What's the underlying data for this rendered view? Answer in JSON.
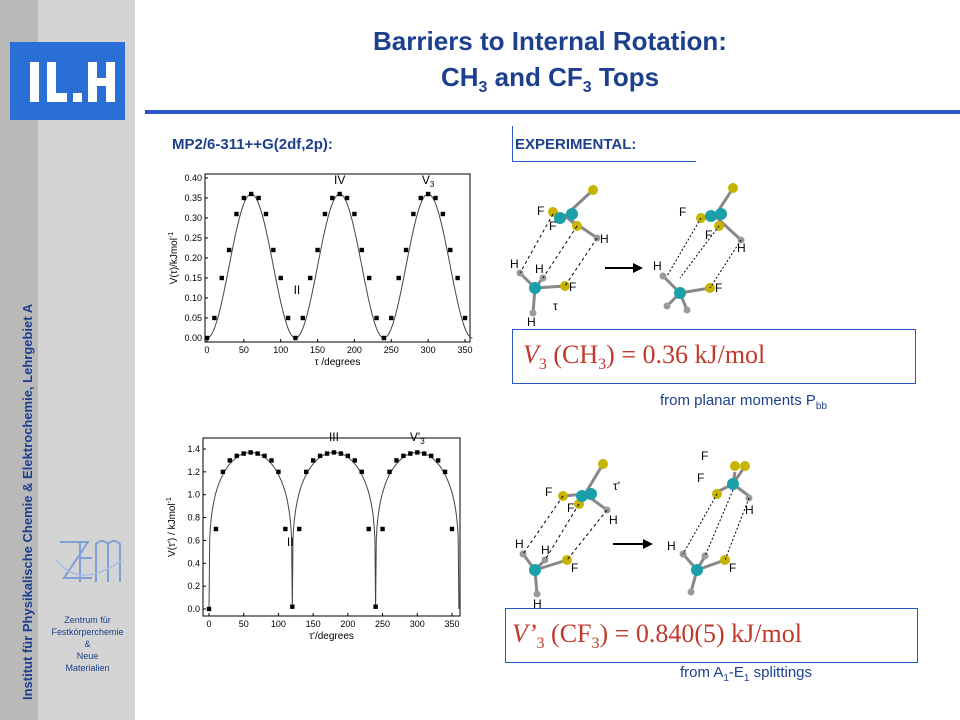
{
  "sidebar": {
    "logo_text": "I.II",
    "vertical_text": "Institut für Physikalische Chemie & Elektrochemie, Lehrgebiet A",
    "center_logo_text": "ZFM",
    "center_lines": [
      "Zentrum für",
      "Festkörperchemie",
      "&",
      "Neue",
      "Materialien"
    ]
  },
  "title": {
    "line1": "Barriers to Internal Rotation:",
    "line2_a": "CH",
    "line2_sub1": "3",
    "line2_b": " and CF",
    "line2_sub2": "3",
    "line2_c": " Tops"
  },
  "labels": {
    "calc": "MP2/6-311++G(2df,2p):",
    "experimental": "EXPERIMENTAL:"
  },
  "formula1": {
    "a": "V",
    "sub1": "3",
    "b": " (CH",
    "sub2": "3",
    "c": ") = 0.36 kJ/mol",
    "note_a": "from planar moments P",
    "note_sub": "bb"
  },
  "formula2": {
    "a": "V’",
    "sub1": "3",
    "b": " (CF",
    "sub2": "3",
    "c": ") = 0.840(5) kJ/mol",
    "note_a": "from A",
    "note_sub1": "1",
    "note_b": "-E",
    "note_sub2": "1",
    "note_c": " splittings"
  },
  "molecule_labels": {
    "F": "F",
    "H": "H",
    "tau": "τ",
    "tau_prime": "τ'"
  },
  "colors": {
    "title": "#1c3f8e",
    "rule": "#2c57c8",
    "formula": "#c0392b",
    "carbon": "#1aa0a8",
    "fluorine": "#c8b400",
    "hydrogen": "#9a9a9a"
  },
  "chart_data": [
    {
      "type": "scatter",
      "xlabel": "τ /degrees",
      "ylabel": "V(τ)/kJmol",
      "ylabel_sup": "-1",
      "xlim": [
        0,
        350
      ],
      "ylim": [
        0,
        0.4
      ],
      "x_ticks": [
        "0",
        "50",
        "100",
        "150",
        "200",
        "250",
        "300",
        "350"
      ],
      "y_ticks": [
        "0.00",
        "0.05",
        "0.10",
        "0.15",
        "0.20",
        "0.25",
        "0.30",
        "0.35",
        "0.40"
      ],
      "annotations": [
        {
          "text": "IV",
          "x": 180,
          "y": 0.385
        },
        {
          "text": "V",
          "sub": "3",
          "x": 300,
          "y": 0.385
        },
        {
          "text": "II",
          "x": 122,
          "y": 0.11
        }
      ],
      "x": [
        0,
        10,
        20,
        30,
        40,
        50,
        60,
        70,
        80,
        90,
        100,
        110,
        120,
        130,
        140,
        150,
        160,
        170,
        180,
        190,
        200,
        210,
        220,
        230,
        240,
        250,
        260,
        270,
        280,
        290,
        300,
        310,
        320,
        330,
        340,
        350
      ],
      "y": [
        0.0,
        0.05,
        0.15,
        0.22,
        0.31,
        0.35,
        0.36,
        0.35,
        0.31,
        0.22,
        0.15,
        0.05,
        0.0,
        0.05,
        0.15,
        0.22,
        0.31,
        0.35,
        0.36,
        0.35,
        0.31,
        0.22,
        0.15,
        0.05,
        0.0,
        0.05,
        0.15,
        0.22,
        0.31,
        0.35,
        0.36,
        0.35,
        0.31,
        0.22,
        0.15,
        0.05
      ],
      "curve": {
        "type": "sin3",
        "amplitude": 0.36
      }
    },
    {
      "type": "scatter",
      "xlabel": "τ'/degrees",
      "ylabel": "V(τ') / kJmol",
      "ylabel_sup": "-1",
      "xlim": [
        0,
        350
      ],
      "ylim": [
        0,
        1.4
      ],
      "x_ticks": [
        "0",
        "50",
        "100",
        "150",
        "200",
        "250",
        "300",
        "350"
      ],
      "y_ticks": [
        "0.0",
        "0.2",
        "0.4",
        "0.6",
        "0.8",
        "1.0",
        "1.2",
        "1.4"
      ],
      "annotations": [
        {
          "text": "III",
          "x": 180,
          "y": 1.47
        },
        {
          "text": "V'",
          "sub": "3",
          "x": 300,
          "y": 1.47
        },
        {
          "text": "II",
          "x": 117,
          "y": 0.55
        }
      ],
      "x": [
        0,
        10,
        20,
        30,
        40,
        50,
        60,
        70,
        80,
        90,
        100,
        110,
        120,
        130,
        140,
        150,
        160,
        170,
        180,
        190,
        200,
        210,
        220,
        230,
        240,
        250,
        260,
        270,
        280,
        290,
        300,
        310,
        320,
        330,
        340,
        350
      ],
      "y": [
        0.0,
        0.7,
        1.2,
        1.3,
        1.34,
        1.36,
        1.37,
        1.36,
        1.34,
        1.3,
        1.2,
        0.7,
        0.02,
        0.7,
        1.2,
        1.3,
        1.34,
        1.36,
        1.37,
        1.36,
        1.34,
        1.3,
        1.2,
        0.7,
        0.02,
        0.7,
        1.2,
        1.3,
        1.34,
        1.36,
        1.37,
        1.36,
        1.34,
        1.3,
        1.2,
        0.7
      ],
      "curve": {
        "type": "flat3",
        "amplitude": 1.37
      }
    }
  ]
}
